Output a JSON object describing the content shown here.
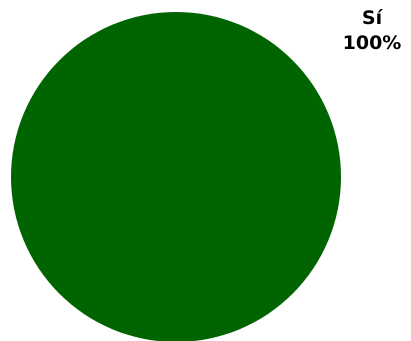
{
  "chart_data": {
    "type": "pie",
    "slices": [
      {
        "label": "Sí",
        "value": 100,
        "percent_label": "100%",
        "color": "#006400"
      }
    ]
  }
}
